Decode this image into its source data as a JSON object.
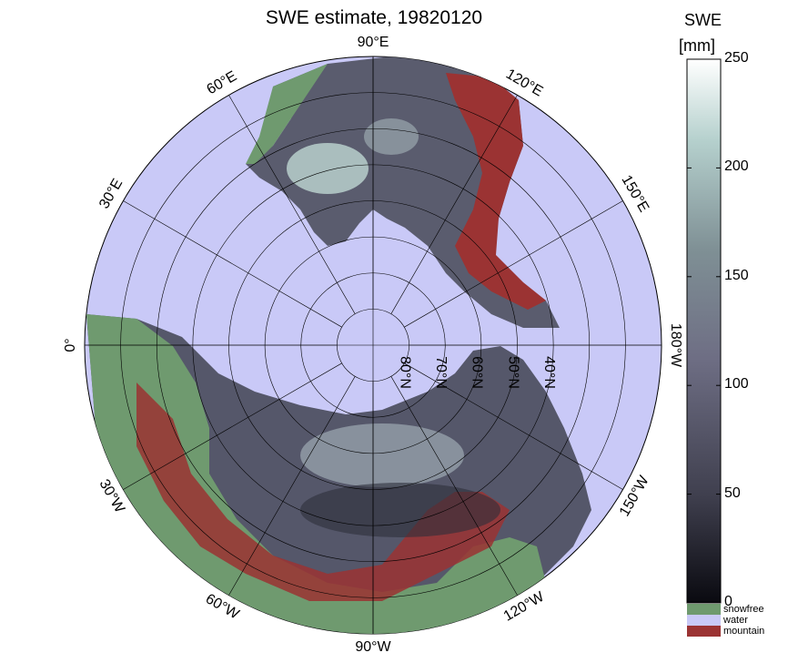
{
  "title": "SWE estimate, 19820120",
  "colorbar": {
    "title": "SWE",
    "unit": "[mm]",
    "ticks": [
      "250",
      "200",
      "150",
      "100",
      "50",
      "0"
    ],
    "tick_values": [
      250,
      200,
      150,
      100,
      50,
      0
    ],
    "min": 0,
    "max": 250
  },
  "legend": [
    {
      "label": "snowfree",
      "color": "#6f9a6f"
    },
    {
      "label": "water",
      "color": "#c9c9f7"
    },
    {
      "label": "mountain",
      "color": "#9b3333"
    }
  ],
  "longitude_labels": [
    {
      "text": "90°W",
      "lon": -90
    },
    {
      "text": "120°W",
      "lon": -120
    },
    {
      "text": "150°W",
      "lon": -150
    },
    {
      "text": "180°W",
      "lon": 180
    },
    {
      "text": "150°E",
      "lon": 150
    },
    {
      "text": "120°E",
      "lon": 120
    },
    {
      "text": "90°E",
      "lon": 90
    },
    {
      "text": "60°E",
      "lon": 60
    },
    {
      "text": "30°E",
      "lon": 30
    },
    {
      "text": "0°",
      "lon": 0
    },
    {
      "text": "30°W",
      "lon": -30
    },
    {
      "text": "60°W",
      "lon": -60
    }
  ],
  "latitude_labels": [
    {
      "text": "80°N",
      "lat": 80
    },
    {
      "text": "70°N",
      "lat": 70
    },
    {
      "text": "60°N",
      "lat": 60
    },
    {
      "text": "50°N",
      "lat": 50
    },
    {
      "text": "40°N",
      "lat": 40
    }
  ],
  "colors": {
    "ocean": "#c9c9f7",
    "snowfree": "#6f9a6f",
    "mountain": "#9b3333",
    "swe_low": "#1a1a24",
    "swe_mid": "#6b6b80",
    "swe_high": "#f4fbfb"
  }
}
